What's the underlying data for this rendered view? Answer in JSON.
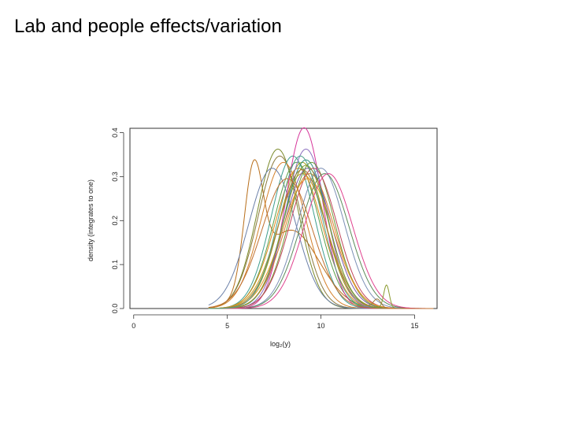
{
  "slide": {
    "title": "Lab and people effects/variation"
  },
  "chart_data": {
    "type": "line",
    "title": "",
    "xlabel": "log₂(y)",
    "ylabel": "density (integrates to one)",
    "xlim": [
      -0.2,
      16.2
    ],
    "ylim": [
      0,
      0.41
    ],
    "xticks": [
      0,
      5,
      10,
      15
    ],
    "yticks": [
      0.0,
      0.1,
      0.2,
      0.3,
      0.4
    ],
    "xtick_labels": [
      "0",
      "5",
      "10",
      "15"
    ],
    "ytick_labels": [
      "0.0",
      "0.1",
      "0.2",
      "0.3",
      "0.4"
    ],
    "x_support": [
      4,
      16
    ],
    "grid": false,
    "legend": "none",
    "series": [
      {
        "color": "#b86e1a",
        "components": [
          {
            "m": 6.4,
            "s": 0.5,
            "w": 0.33
          },
          {
            "m": 8.4,
            "s": 1.5,
            "w": 0.67
          }
        ]
      },
      {
        "color": "#7a8a2a",
        "components": [
          {
            "m": 7.7,
            "s": 1.1,
            "w": 1
          }
        ]
      },
      {
        "color": "#8c7a3c",
        "components": [
          {
            "m": 7.8,
            "s": 1.15,
            "w": 1
          }
        ]
      },
      {
        "color": "#d4812a",
        "components": [
          {
            "m": 8.0,
            "s": 1.2,
            "w": 1
          }
        ]
      },
      {
        "color": "#6a7fa8",
        "components": [
          {
            "m": 7.4,
            "s": 1.25,
            "w": 1
          }
        ]
      },
      {
        "color": "#3f9e8e",
        "components": [
          {
            "m": 8.5,
            "s": 1.15,
            "w": 1
          }
        ]
      },
      {
        "color": "#5aa04a",
        "components": [
          {
            "m": 8.7,
            "s": 1.2,
            "w": 1
          }
        ]
      },
      {
        "color": "#e08a1e",
        "components": [
          {
            "m": 8.8,
            "s": 1.25,
            "w": 1
          }
        ]
      },
      {
        "color": "#9ca21f",
        "components": [
          {
            "m": 9.0,
            "s": 1.2,
            "w": 1
          }
        ]
      },
      {
        "color": "#d6359a",
        "components": [
          {
            "m": 9.1,
            "s": 0.97,
            "w": 1
          }
        ]
      },
      {
        "color": "#8b6fc0",
        "components": [
          {
            "m": 9.2,
            "s": 1.1,
            "w": 1
          }
        ]
      },
      {
        "color": "#c2a024",
        "components": [
          {
            "m": 9.0,
            "s": 1.3,
            "w": 1
          }
        ]
      },
      {
        "color": "#7c5aa8",
        "components": [
          {
            "m": 9.3,
            "s": 1.25,
            "w": 1
          }
        ]
      },
      {
        "color": "#2f8f7f",
        "components": [
          {
            "m": 9.2,
            "s": 1.18,
            "w": 1
          }
        ]
      },
      {
        "color": "#d8822e",
        "components": [
          {
            "m": 9.4,
            "s": 1.3,
            "w": 1
          }
        ]
      },
      {
        "color": "#6f9b3a",
        "components": [
          {
            "m": 9.5,
            "s": 1.2,
            "w": 1
          }
        ]
      },
      {
        "color": "#c0455a",
        "components": [
          {
            "m": 9.6,
            "s": 1.25,
            "w": 1
          }
        ]
      },
      {
        "color": "#e6962a",
        "components": [
          {
            "m": 9.3,
            "s": 1.35,
            "w": 1
          }
        ]
      },
      {
        "color": "#7b8fb5",
        "components": [
          {
            "m": 10.0,
            "s": 1.25,
            "w": 1
          }
        ]
      },
      {
        "color": "#5b8c5a",
        "components": [
          {
            "m": 10.2,
            "s": 1.3,
            "w": 1
          }
        ]
      },
      {
        "color": "#e0418e",
        "components": [
          {
            "m": 10.4,
            "s": 1.3,
            "w": 1
          }
        ]
      },
      {
        "color": "#8a9a2e",
        "components": [
          {
            "m": 9.2,
            "s": 1.2,
            "w": 0.98
          },
          {
            "m": 13.5,
            "s": 0.15,
            "w": 0.02
          }
        ]
      },
      {
        "color": "#a07a3a",
        "components": [
          {
            "m": 9.0,
            "s": 1.25,
            "w": 0.99
          },
          {
            "m": 13.0,
            "s": 0.2,
            "w": 0.01
          }
        ]
      },
      {
        "color": "#4fa08c",
        "components": [
          {
            "m": 8.9,
            "s": 1.15,
            "w": 1
          }
        ]
      },
      {
        "color": "#bf6f2f",
        "components": [
          {
            "m": 8.2,
            "s": 1.35,
            "w": 1
          }
        ]
      }
    ]
  }
}
